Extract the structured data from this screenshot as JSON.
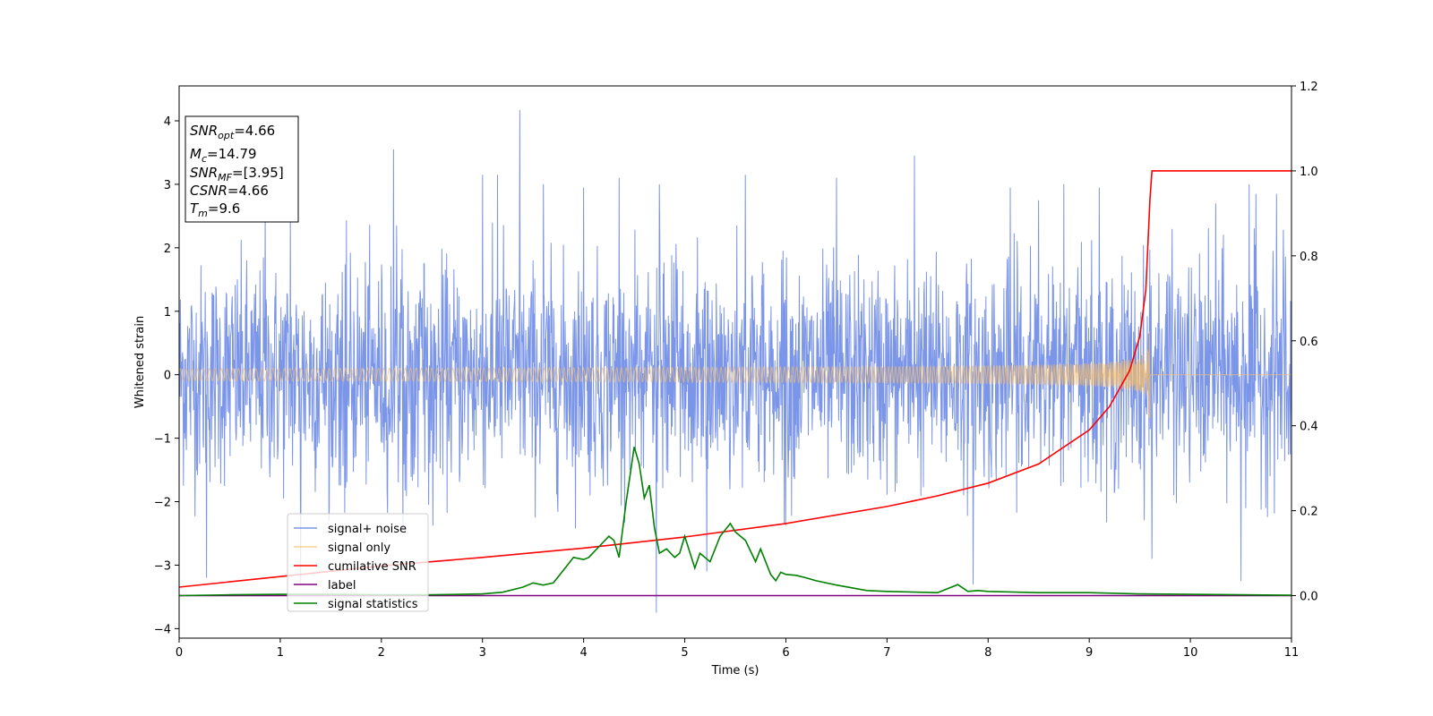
{
  "chart_data": {
    "type": "line",
    "title": "",
    "xlabel": "Time (s)",
    "ylabel": "Whitened strain",
    "xlim": [
      0,
      11
    ],
    "ylim": [
      -4.15,
      4.55
    ],
    "y2lim": [
      -0.1,
      1.2
    ],
    "xticks": [
      "0",
      "1",
      "2",
      "3",
      "4",
      "5",
      "6",
      "7",
      "8",
      "9",
      "10",
      "11"
    ],
    "yticks": [
      "−4",
      "−3",
      "−2",
      "−1",
      "0",
      "1",
      "2",
      "3",
      "4"
    ],
    "y2ticks": [
      "0.0",
      "0.2",
      "0.4",
      "0.6",
      "0.8",
      "1.0",
      "1.2"
    ],
    "grid": false,
    "legend_position": "lower-left",
    "annotation": {
      "snr_opt": {
        "name": "SNR",
        "sub": "opt",
        "value": "=4.66"
      },
      "mc": {
        "name": "M",
        "sub": "c",
        "value": "=14.79"
      },
      "snr_mf": {
        "name": "SNR",
        "sub": "MF",
        "value": "=[3.95]"
      },
      "csnr": {
        "name": "CSNR",
        "value": "=4.66"
      },
      "tm": {
        "name": "T",
        "sub": "m",
        "value": "=9.6"
      }
    },
    "series": [
      {
        "name": "signal+ noise",
        "axis": "left",
        "color": "#7b95e8",
        "style": "noise",
        "std": 0.85,
        "x_range": [
          0,
          11
        ],
        "spikes": [
          [
            0.27,
            -3.2
          ],
          [
            0.85,
            2.65
          ],
          [
            1.1,
            2.6
          ],
          [
            1.2,
            -3.3
          ],
          [
            2.12,
            3.55
          ],
          [
            3.0,
            3.15
          ],
          [
            3.15,
            3.15
          ],
          [
            3.37,
            4.17
          ],
          [
            3.6,
            3.0
          ],
          [
            4.0,
            2.95
          ],
          [
            4.35,
            3.1
          ],
          [
            4.72,
            -3.75
          ],
          [
            4.75,
            3.0
          ],
          [
            5.22,
            -3.1
          ],
          [
            5.6,
            3.15
          ],
          [
            6.5,
            3.1
          ],
          [
            7.27,
            3.45
          ],
          [
            7.85,
            -3.3
          ],
          [
            8.22,
            2.95
          ],
          [
            8.5,
            2.75
          ],
          [
            8.75,
            3.0
          ],
          [
            9.1,
            2.95
          ],
          [
            10.25,
            2.7
          ],
          [
            10.58,
            3.0
          ],
          [
            10.65,
            2.85
          ],
          [
            10.85,
            2.85
          ],
          [
            10.5,
            -3.25
          ],
          [
            9.62,
            -2.9
          ]
        ]
      },
      {
        "name": "signal only",
        "axis": "left",
        "color": "#f7be6a",
        "style": "chirp",
        "t_merge": 9.6,
        "peak_amplitude": 0.68,
        "x_range": [
          0,
          11
        ]
      },
      {
        "name": "cumilative SNR",
        "axis": "right",
        "color": "#ff0000",
        "x": [
          0,
          1,
          2,
          3,
          4,
          5,
          6,
          7,
          7.5,
          8,
          8.5,
          9,
          9.2,
          9.4,
          9.5,
          9.56,
          9.6,
          9.62,
          11
        ],
        "values": [
          0.02,
          0.045,
          0.07,
          0.09,
          0.112,
          0.138,
          0.17,
          0.21,
          0.235,
          0.265,
          0.31,
          0.39,
          0.445,
          0.53,
          0.61,
          0.72,
          0.93,
          1.0,
          1.0
        ]
      },
      {
        "name": "label",
        "axis": "right",
        "color": "#800080",
        "x": [
          0,
          11
        ],
        "values": [
          0,
          0
        ]
      },
      {
        "name": "signal statistics",
        "axis": "right",
        "color": "#008000",
        "x": [
          0,
          0.5,
          1.0,
          1.5,
          2.0,
          2.5,
          3.0,
          3.2,
          3.4,
          3.5,
          3.6,
          3.7,
          3.8,
          3.9,
          4.0,
          4.05,
          4.15,
          4.25,
          4.3,
          4.35,
          4.42,
          4.5,
          4.55,
          4.6,
          4.65,
          4.7,
          4.75,
          4.82,
          4.9,
          4.95,
          5.0,
          5.1,
          5.15,
          5.25,
          5.35,
          5.45,
          5.5,
          5.6,
          5.7,
          5.75,
          5.85,
          5.9,
          5.95,
          6.0,
          6.1,
          6.2,
          6.3,
          6.5,
          6.8,
          7.0,
          7.5,
          7.7,
          7.8,
          7.9,
          8.0,
          8.5,
          9.0,
          9.5,
          10,
          10.5,
          11
        ],
        "values": [
          0.0,
          0.002,
          0.003,
          0.003,
          0.002,
          0.002,
          0.004,
          0.008,
          0.02,
          0.03,
          0.025,
          0.03,
          0.06,
          0.09,
          0.085,
          0.09,
          0.115,
          0.14,
          0.13,
          0.09,
          0.22,
          0.35,
          0.31,
          0.23,
          0.26,
          0.16,
          0.1,
          0.11,
          0.09,
          0.1,
          0.14,
          0.065,
          0.1,
          0.08,
          0.14,
          0.17,
          0.15,
          0.13,
          0.08,
          0.11,
          0.05,
          0.035,
          0.055,
          0.05,
          0.048,
          0.042,
          0.035,
          0.025,
          0.012,
          0.01,
          0.007,
          0.026,
          0.01,
          0.012,
          0.01,
          0.007,
          0.007,
          0.004,
          0.003,
          0.002,
          0.001
        ]
      }
    ]
  }
}
